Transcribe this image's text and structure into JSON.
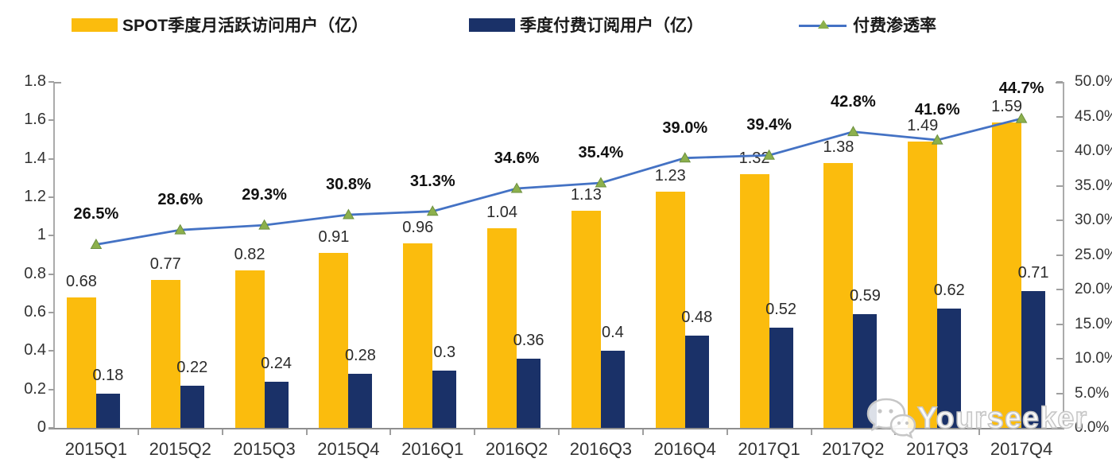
{
  "legend": {
    "items": [
      {
        "label": "SPOT季度月活跃访问用户（亿）",
        "type": "bar",
        "color": "#FBBC0D"
      },
      {
        "label": "季度付费订阅用户（亿）",
        "type": "bar",
        "color": "#1A3168"
      },
      {
        "label": "付费渗透率",
        "type": "line",
        "color": "#4472C4",
        "marker_color": "#8CB04C"
      }
    ]
  },
  "watermark": {
    "text": "Yourseeker",
    "icon": "wechat-icon"
  },
  "chart_data": {
    "type": "combo-bar-line",
    "categories": [
      "2015Q1",
      "2015Q2",
      "2015Q3",
      "2015Q4",
      "2016Q1",
      "2016Q2",
      "2016Q3",
      "2016Q4",
      "2017Q1",
      "2017Q2",
      "2017Q3",
      "2017Q4"
    ],
    "series": [
      {
        "name": "SPOT季度月活跃访问用户（亿）",
        "type": "bar",
        "axis": "left",
        "color": "#FBBC0D",
        "values": [
          0.68,
          0.77,
          0.82,
          0.91,
          0.96,
          1.04,
          1.13,
          1.23,
          1.32,
          1.38,
          1.49,
          1.59
        ],
        "labels": [
          "0.68",
          "0.77",
          "0.82",
          "0.91",
          "0.96",
          "1.04",
          "1.13",
          "1.23",
          "1.32",
          "1.38",
          "1.49",
          "1.59"
        ]
      },
      {
        "name": "季度付费订阅用户（亿）",
        "type": "bar",
        "axis": "left",
        "color": "#1A3168",
        "values": [
          0.18,
          0.22,
          0.24,
          0.28,
          0.3,
          0.36,
          0.4,
          0.48,
          0.52,
          0.59,
          0.62,
          0.71
        ],
        "labels": [
          "0.18",
          "0.22",
          "0.24",
          "0.28",
          "0.3",
          "0.36",
          "0.4",
          "0.48",
          "0.52",
          "0.59",
          "0.62",
          "0.71"
        ]
      },
      {
        "name": "付费渗透率",
        "type": "line",
        "axis": "right",
        "color": "#4472C4",
        "marker": "triangle",
        "marker_color": "#8CB04C",
        "values": [
          26.5,
          28.6,
          29.3,
          30.8,
          31.3,
          34.6,
          35.4,
          39.0,
          39.4,
          42.8,
          41.6,
          44.7
        ],
        "labels": [
          "26.5%",
          "28.6%",
          "29.3%",
          "30.8%",
          "31.3%",
          "34.6%",
          "35.4%",
          "39.0%",
          "39.4%",
          "42.8%",
          "41.6%",
          "44.7%"
        ]
      }
    ],
    "left_axis": {
      "min": 0,
      "max": 1.8,
      "tick_labels": [
        "1.8",
        "1.6",
        "1.4",
        "1.2",
        "1",
        "0.8",
        "0.6",
        "0.4",
        "0.2",
        "0"
      ]
    },
    "right_axis": {
      "min": 0,
      "max": 50,
      "tick_labels": [
        "50.0%",
        "45.0%",
        "40.0%",
        "35.0%",
        "30.0%",
        "25.0%",
        "20.0%",
        "15.0%",
        "10.0%",
        "5.0%",
        "0.0%"
      ]
    },
    "grid": false,
    "legend_position": "top",
    "title": ""
  }
}
